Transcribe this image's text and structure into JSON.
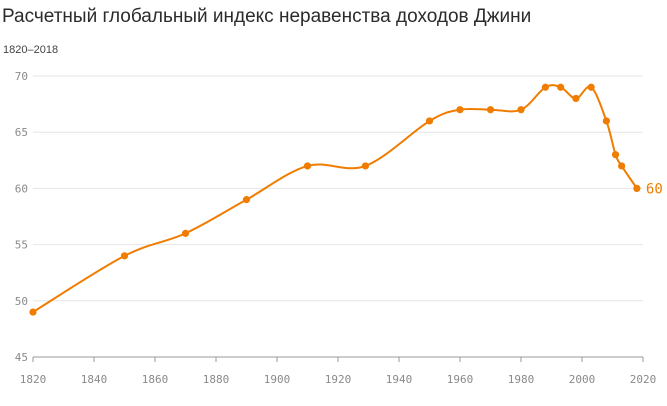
{
  "chart_data": {
    "type": "line",
    "title": "Расчетный глобальный индекс неравенства доходов Джини",
    "subtitle": "1820–2018",
    "xlabel": "",
    "ylabel": "",
    "xlim": [
      1820,
      2020
    ],
    "ylim": [
      45,
      70
    ],
    "x_ticks": [
      1820,
      1840,
      1860,
      1880,
      1900,
      1920,
      1940,
      1960,
      1980,
      2000,
      2020
    ],
    "y_ticks": [
      45,
      50,
      55,
      60,
      65,
      70
    ],
    "grid": "horizontal",
    "legend": "none",
    "series": [
      {
        "color": "#f07c00",
        "x": [
          1820,
          1850,
          1870,
          1890,
          1910,
          1929,
          1950,
          1960,
          1970,
          1980,
          1988,
          1993,
          1998,
          2003,
          2008,
          2011,
          2013,
          2018
        ],
        "y": [
          49,
          54,
          56,
          59,
          62,
          62,
          66,
          67,
          67,
          67,
          69,
          69,
          68,
          69,
          66,
          63,
          62,
          60
        ]
      }
    ],
    "end_label": "60"
  },
  "colors": {
    "line": "#f07c00",
    "grid": "#e6e6e6",
    "axis": "#999999",
    "tick_text": "#8a8a8a"
  }
}
